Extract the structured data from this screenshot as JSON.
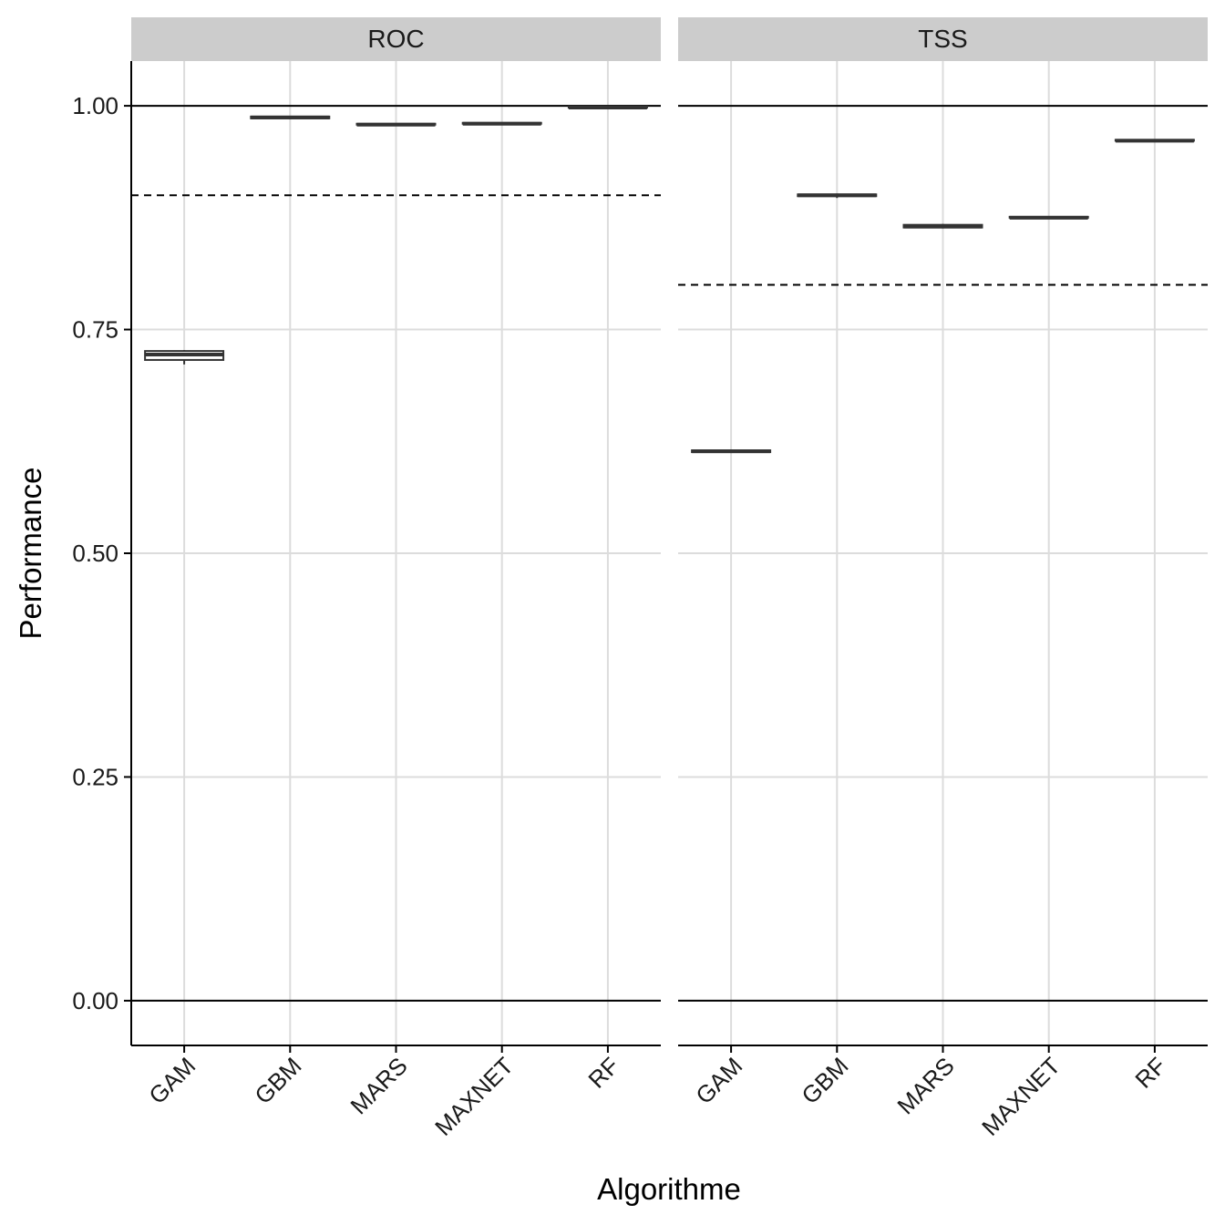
{
  "chart_data": {
    "type": "boxplot",
    "xlabel": "Algorithme",
    "ylabel": "Performance",
    "ylim": [
      -0.05,
      1.05
    ],
    "y_ticks": [
      0.0,
      0.25,
      0.5,
      0.75,
      1.0
    ],
    "y_tick_labels": [
      "0.00",
      "0.25",
      "0.50",
      "0.75",
      "1.00"
    ],
    "categories": [
      "GAM",
      "GBM",
      "MARS",
      "MAXNET",
      "RF"
    ],
    "grid": true,
    "facets": [
      {
        "label": "ROC",
        "reference_lines": {
          "solid": [
            0.0,
            1.0
          ],
          "dashed": 0.9
        },
        "boxes": [
          {
            "category": "GAM",
            "min": 0.711,
            "q1": 0.716,
            "median": 0.722,
            "q3": 0.726,
            "max": 0.727
          },
          {
            "category": "GBM",
            "min": 0.985,
            "q1": 0.986,
            "median": 0.987,
            "q3": 0.988,
            "max": 0.988
          },
          {
            "category": "MARS",
            "min": 0.978,
            "q1": 0.979,
            "median": 0.979,
            "q3": 0.98,
            "max": 0.98
          },
          {
            "category": "MAXNET",
            "min": 0.979,
            "q1": 0.98,
            "median": 0.98,
            "q3": 0.981,
            "max": 0.981
          },
          {
            "category": "RF",
            "min": 0.997,
            "q1": 0.998,
            "median": 0.998,
            "q3": 0.999,
            "max": 0.999
          }
        ]
      },
      {
        "label": "TSS",
        "reference_lines": {
          "solid": [
            0.0,
            1.0
          ],
          "dashed": 0.8
        },
        "boxes": [
          {
            "category": "GAM",
            "min": 0.612,
            "q1": 0.613,
            "median": 0.614,
            "q3": 0.615,
            "max": 0.616
          },
          {
            "category": "GBM",
            "min": 0.897,
            "q1": 0.899,
            "median": 0.9,
            "q3": 0.901,
            "max": 0.902
          },
          {
            "category": "MARS",
            "min": 0.863,
            "q1": 0.864,
            "median": 0.865,
            "q3": 0.867,
            "max": 0.868
          },
          {
            "category": "MAXNET",
            "min": 0.874,
            "q1": 0.875,
            "median": 0.875,
            "q3": 0.876,
            "max": 0.876
          },
          {
            "category": "RF",
            "min": 0.96,
            "q1": 0.961,
            "median": 0.961,
            "q3": 0.962,
            "max": 0.962
          }
        ]
      }
    ]
  }
}
